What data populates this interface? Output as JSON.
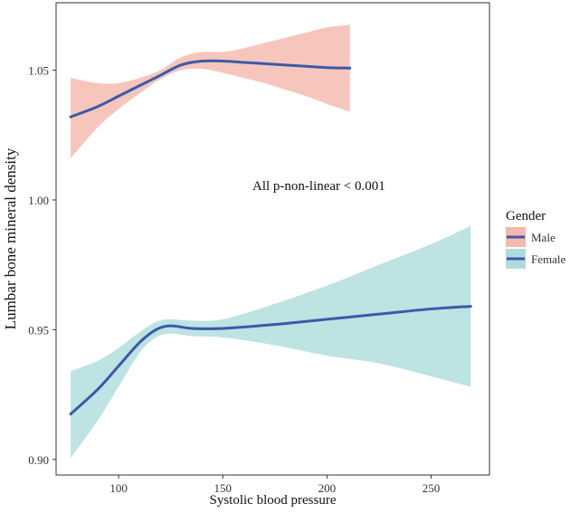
{
  "chart_data": {
    "type": "line",
    "title": "",
    "xlabel": "Systolic blood pressure",
    "ylabel": "Lumbar bone mineral density",
    "xlim": [
      70,
      278
    ],
    "ylim": [
      0.894,
      1.076
    ],
    "x_ticks": [
      100,
      150,
      200,
      250
    ],
    "y_ticks": [
      0.9,
      0.95,
      1.0,
      1.05
    ],
    "y_tick_labels": [
      "0.90",
      "0.95",
      "1.00",
      "1.05"
    ],
    "annotation": "All p-non-linear < 0.001",
    "grid": false,
    "legend": {
      "title": "Gender",
      "position": "right"
    },
    "series": [
      {
        "name": "Male",
        "line_color": "#3a5aa8",
        "band_color": "#f4b8ad",
        "x": [
          77,
          90,
          100,
          110,
          120,
          130,
          140,
          150,
          160,
          170,
          180,
          190,
          200,
          211
        ],
        "y": [
          1.032,
          1.036,
          1.04,
          1.044,
          1.048,
          1.052,
          1.0535,
          1.0535,
          1.053,
          1.0525,
          1.052,
          1.0515,
          1.051,
          1.0508
        ],
        "lower": [
          1.016,
          1.028,
          1.035,
          1.041,
          1.0465,
          1.05,
          1.0505,
          1.049,
          1.047,
          1.045,
          1.0425,
          1.04,
          1.037,
          1.034
        ],
        "upper": [
          1.047,
          1.045,
          1.045,
          1.047,
          1.05,
          1.055,
          1.057,
          1.057,
          1.0585,
          1.0605,
          1.0625,
          1.0645,
          1.0665,
          1.0675
        ]
      },
      {
        "name": "Female",
        "line_color": "#3a5aa8",
        "band_color": "#aedcdc",
        "x": [
          77,
          90,
          100,
          110,
          118,
          125,
          135,
          150,
          175,
          200,
          225,
          250,
          269
        ],
        "y": [
          0.9175,
          0.927,
          0.936,
          0.945,
          0.95,
          0.9515,
          0.9505,
          0.9505,
          0.952,
          0.954,
          0.956,
          0.958,
          0.959
        ],
        "lower": [
          0.9005,
          0.915,
          0.928,
          0.941,
          0.947,
          0.9485,
          0.9475,
          0.947,
          0.944,
          0.94,
          0.937,
          0.932,
          0.928
        ],
        "upper": [
          0.934,
          0.938,
          0.943,
          0.949,
          0.953,
          0.954,
          0.9535,
          0.954,
          0.96,
          0.967,
          0.975,
          0.983,
          0.99
        ]
      }
    ]
  }
}
